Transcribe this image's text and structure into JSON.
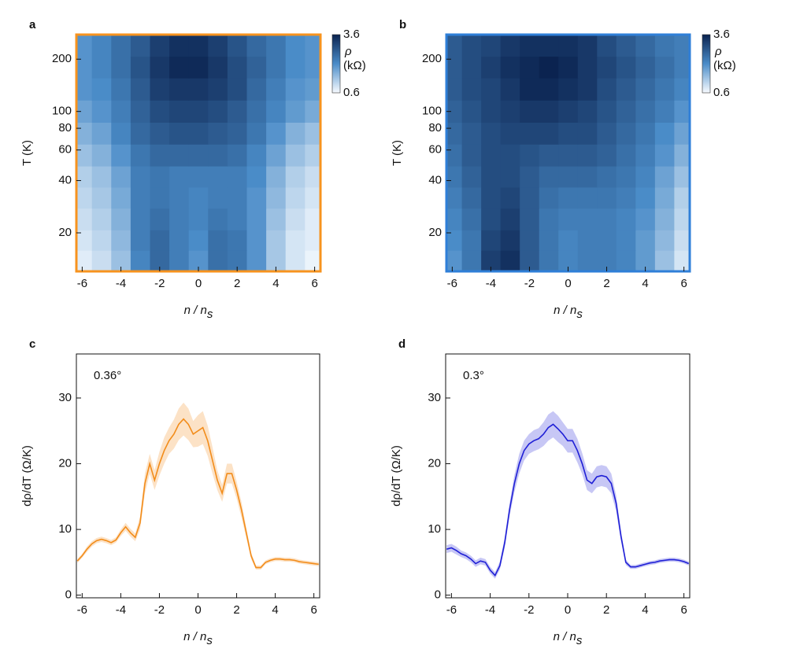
{
  "chart_data": [
    {
      "type": "heatmap",
      "panel_label": "a",
      "frame_color": "#f7931e",
      "xlabel": {
        "text": "n / n",
        "sub": "s"
      },
      "ylabel": "T (K)",
      "x": [
        -6,
        -5,
        -4,
        -3,
        -2,
        -1,
        0,
        1,
        2,
        3,
        4,
        5,
        6
      ],
      "y": [
        14,
        18,
        24,
        32,
        42,
        56,
        75,
        100,
        135,
        180,
        240
      ],
      "values": [
        [
          0.8,
          1.0,
          1.4,
          2.2,
          2.6,
          2.3,
          2.0,
          2.5,
          2.4,
          2.0,
          1.3,
          0.9,
          0.7
        ],
        [
          0.9,
          1.1,
          1.5,
          2.3,
          2.6,
          2.3,
          2.1,
          2.5,
          2.4,
          2.0,
          1.3,
          0.9,
          0.8
        ],
        [
          1.0,
          1.2,
          1.6,
          2.3,
          2.5,
          2.3,
          2.2,
          2.4,
          2.3,
          2.0,
          1.4,
          1.0,
          0.8
        ],
        [
          1.1,
          1.3,
          1.7,
          2.3,
          2.4,
          2.3,
          2.2,
          2.3,
          2.3,
          2.0,
          1.5,
          1.1,
          0.9
        ],
        [
          1.2,
          1.4,
          1.8,
          2.3,
          2.4,
          2.3,
          2.3,
          2.3,
          2.3,
          2.1,
          1.6,
          1.2,
          1.0
        ],
        [
          1.4,
          1.6,
          2.0,
          2.4,
          2.6,
          2.6,
          2.6,
          2.6,
          2.5,
          2.2,
          1.8,
          1.4,
          1.2
        ],
        [
          1.6,
          1.8,
          2.2,
          2.6,
          2.8,
          2.9,
          2.9,
          2.8,
          2.7,
          2.4,
          2.0,
          1.6,
          1.4
        ],
        [
          1.8,
          2.0,
          2.3,
          2.7,
          3.0,
          3.1,
          3.1,
          3.0,
          2.8,
          2.5,
          2.2,
          1.9,
          1.7
        ],
        [
          2.0,
          2.1,
          2.4,
          2.8,
          3.2,
          3.3,
          3.3,
          3.2,
          3.0,
          2.6,
          2.3,
          2.0,
          1.9
        ],
        [
          2.0,
          2.2,
          2.5,
          2.9,
          3.3,
          3.5,
          3.5,
          3.3,
          3.0,
          2.7,
          2.4,
          2.1,
          2.0
        ],
        [
          2.0,
          2.2,
          2.5,
          2.8,
          3.2,
          3.4,
          3.4,
          3.2,
          2.9,
          2.6,
          2.4,
          2.1,
          2.0
        ]
      ],
      "xlim": [
        -6.3,
        6.3
      ],
      "ylim": [
        12,
        277
      ],
      "log_y": true,
      "xticks": [
        -6,
        -4,
        -2,
        0,
        2,
        4,
        6
      ],
      "yticks": [
        20,
        40,
        60,
        80,
        100,
        200
      ],
      "clim": [
        0.6,
        3.6
      ],
      "cticks": [
        0.6,
        3.6
      ],
      "colorbar_label": "ρ",
      "colorbar_unit": "(kΩ)"
    },
    {
      "type": "heatmap",
      "panel_label": "b",
      "frame_color": "#2f7fd8",
      "xlabel": {
        "text": "n / n",
        "sub": "s"
      },
      "ylabel": "T (K)",
      "x": [
        -6,
        -5,
        -4,
        -3,
        -2,
        -1,
        0,
        1,
        2,
        3,
        4,
        5,
        6
      ],
      "y": [
        14,
        18,
        24,
        32,
        42,
        56,
        75,
        100,
        135,
        180,
        240
      ],
      "values": [
        [
          2.0,
          2.4,
          3.2,
          3.4,
          2.8,
          2.4,
          2.2,
          2.3,
          2.3,
          2.2,
          1.9,
          1.4,
          0.9
        ],
        [
          2.1,
          2.4,
          3.1,
          3.3,
          2.8,
          2.4,
          2.2,
          2.3,
          2.3,
          2.2,
          1.9,
          1.5,
          1.0
        ],
        [
          2.2,
          2.5,
          3.0,
          3.2,
          2.8,
          2.4,
          2.3,
          2.3,
          2.3,
          2.2,
          2.0,
          1.6,
          1.1
        ],
        [
          2.3,
          2.6,
          3.0,
          3.1,
          2.8,
          2.5,
          2.4,
          2.4,
          2.4,
          2.3,
          2.1,
          1.7,
          1.2
        ],
        [
          2.4,
          2.7,
          3.0,
          3.0,
          2.8,
          2.6,
          2.6,
          2.6,
          2.5,
          2.4,
          2.2,
          1.8,
          1.4
        ],
        [
          2.5,
          2.8,
          3.0,
          3.0,
          2.9,
          2.8,
          2.8,
          2.8,
          2.7,
          2.5,
          2.3,
          2.0,
          1.6
        ],
        [
          2.6,
          2.8,
          3.0,
          3.1,
          3.1,
          3.1,
          3.0,
          3.0,
          2.8,
          2.6,
          2.4,
          2.1,
          1.8
        ],
        [
          2.7,
          2.9,
          3.1,
          3.2,
          3.3,
          3.3,
          3.2,
          3.1,
          2.9,
          2.7,
          2.5,
          2.3,
          2.0
        ],
        [
          2.8,
          3.0,
          3.1,
          3.3,
          3.5,
          3.5,
          3.4,
          3.3,
          3.0,
          2.8,
          2.6,
          2.4,
          2.2
        ],
        [
          2.8,
          3.0,
          3.2,
          3.4,
          3.5,
          3.6,
          3.5,
          3.3,
          3.1,
          2.9,
          2.7,
          2.5,
          2.3
        ],
        [
          2.8,
          3.0,
          3.1,
          3.3,
          3.4,
          3.4,
          3.4,
          3.3,
          3.0,
          2.8,
          2.6,
          2.4,
          2.3
        ]
      ],
      "xlim": [
        -6.3,
        6.3
      ],
      "ylim": [
        12,
        277
      ],
      "log_y": true,
      "xticks": [
        -6,
        -4,
        -2,
        0,
        2,
        4,
        6
      ],
      "yticks": [
        20,
        40,
        60,
        80,
        100,
        200
      ],
      "clim": [
        0.6,
        3.6
      ],
      "cticks": [
        0.6,
        3.6
      ],
      "colorbar_label": "ρ",
      "colorbar_unit": "(kΩ)"
    },
    {
      "type": "line",
      "panel_label": "c",
      "annotation": "0.36°",
      "xlabel": {
        "text": "n / n",
        "sub": "s"
      },
      "ylabel": "dρ/dT (Ω/K)",
      "x": [
        -6.25,
        -6,
        -5.75,
        -5.5,
        -5.25,
        -5,
        -4.75,
        -4.5,
        -4.25,
        -4,
        -3.75,
        -3.5,
        -3.25,
        -3,
        -2.75,
        -2.5,
        -2.25,
        -2,
        -1.75,
        -1.5,
        -1.25,
        -1,
        -0.75,
        -0.5,
        -0.25,
        0,
        0.25,
        0.5,
        0.75,
        1,
        1.25,
        1.5,
        1.75,
        2,
        2.25,
        2.5,
        2.75,
        3,
        3.25,
        3.5,
        3.75,
        4,
        4.25,
        4.5,
        4.75,
        5,
        5.25,
        5.5,
        5.75,
        6,
        6.25
      ],
      "series": [
        {
          "color": "#f28c1a",
          "values": [
            5.2,
            6.0,
            7.0,
            7.8,
            8.3,
            8.5,
            8.3,
            8.0,
            8.4,
            9.5,
            10.4,
            9.5,
            8.8,
            11,
            17,
            20,
            17.5,
            20,
            22,
            23.5,
            24.5,
            26,
            26.8,
            26,
            24.5,
            25,
            25.5,
            23.5,
            20.5,
            17.5,
            15.5,
            18.5,
            18.5,
            16,
            13,
            9.5,
            6,
            4.2,
            4.2,
            5,
            5.3,
            5.5,
            5.5,
            5.4,
            5.4,
            5.3,
            5.1,
            5,
            4.9,
            4.8,
            4.7
          ],
          "errors": [
            0.3,
            0.3,
            0.4,
            0.4,
            0.4,
            0.4,
            0.4,
            0.4,
            0.4,
            0.5,
            0.6,
            0.6,
            0.6,
            1.0,
            1.5,
            1.5,
            1.5,
            1.8,
            2.0,
            2.0,
            2.2,
            2.4,
            2.5,
            2.4,
            2.0,
            2.4,
            2.5,
            2.3,
            2.0,
            1.5,
            1.3,
            1.5,
            1.5,
            1.3,
            1.2,
            0.8,
            0.5,
            0.3,
            0.3,
            0.3,
            0.3,
            0.3,
            0.3,
            0.3,
            0.3,
            0.3,
            0.3,
            0.3,
            0.3,
            0.3,
            0.3
          ]
        }
      ],
      "xlim": [
        -6.3,
        6.3
      ],
      "ylim": [
        -0.4,
        36.7
      ],
      "xticks": [
        -6,
        -4,
        -2,
        0,
        2,
        4,
        6
      ],
      "yticks": [
        0,
        10,
        20,
        30
      ]
    },
    {
      "type": "line",
      "panel_label": "d",
      "annotation": "0.3°",
      "xlabel": {
        "text": "n / n",
        "sub": "s"
      },
      "ylabel": "dρ/dT (Ω/K)",
      "x": [
        -6.25,
        -6,
        -5.75,
        -5.5,
        -5.25,
        -5,
        -4.75,
        -4.5,
        -4.25,
        -4,
        -3.75,
        -3.5,
        -3.25,
        -3,
        -2.75,
        -2.5,
        -2.25,
        -2,
        -1.75,
        -1.5,
        -1.25,
        -1,
        -0.75,
        -0.5,
        -0.25,
        0,
        0.25,
        0.5,
        0.75,
        1,
        1.25,
        1.5,
        1.75,
        2,
        2.25,
        2.5,
        2.75,
        3,
        3.25,
        3.5,
        3.75,
        4,
        4.25,
        4.5,
        4.75,
        5,
        5.25,
        5.5,
        5.75,
        6,
        6.25
      ],
      "series": [
        {
          "color": "#1f1fd6",
          "values": [
            7.0,
            7.2,
            6.8,
            6.3,
            6.0,
            5.5,
            4.8,
            5.2,
            5.0,
            3.8,
            3.0,
            4.5,
            8,
            13,
            17,
            20,
            22,
            23,
            23.5,
            23.8,
            24.5,
            25.5,
            26,
            25.3,
            24.5,
            23.5,
            23.5,
            22,
            20,
            17.5,
            17,
            18,
            18.2,
            18,
            17,
            14,
            9,
            5,
            4.3,
            4.3,
            4.5,
            4.7,
            4.9,
            5.0,
            5.2,
            5.3,
            5.4,
            5.4,
            5.3,
            5.1,
            4.8
          ],
          "errors": [
            0.6,
            0.6,
            0.6,
            0.5,
            0.5,
            0.5,
            0.5,
            0.5,
            0.5,
            0.5,
            0.5,
            0.6,
            0.8,
            1.0,
            1.3,
            1.5,
            1.5,
            1.5,
            1.6,
            1.6,
            1.8,
            2.0,
            2.0,
            2.0,
            1.8,
            1.8,
            1.8,
            1.8,
            1.6,
            1.5,
            1.5,
            1.6,
            1.6,
            1.6,
            1.5,
            1.2,
            0.8,
            0.4,
            0.3,
            0.3,
            0.3,
            0.3,
            0.3,
            0.3,
            0.3,
            0.3,
            0.3,
            0.3,
            0.3,
            0.3,
            0.3
          ]
        }
      ],
      "xlim": [
        -6.3,
        6.3
      ],
      "ylim": [
        -0.4,
        36.7
      ],
      "xticks": [
        -6,
        -4,
        -2,
        0,
        2,
        4,
        6
      ],
      "yticks": [
        0,
        10,
        20,
        30
      ]
    }
  ]
}
